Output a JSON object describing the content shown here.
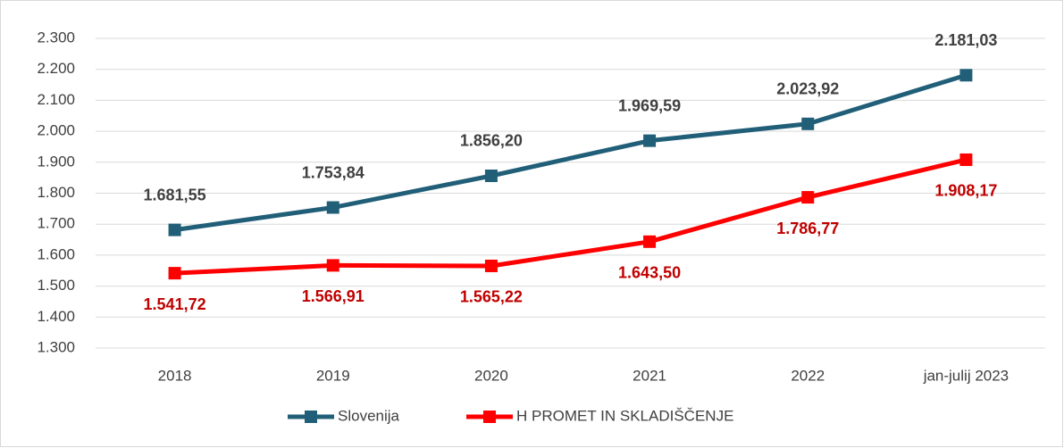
{
  "chart_data": {
    "type": "line",
    "categories": [
      "2018",
      "2019",
      "2020",
      "2021",
      "2022",
      "jan-julij 2023"
    ],
    "series": [
      {
        "name": "Slovenija",
        "color": "#215f79",
        "label_color": "#404040",
        "values": [
          1681.55,
          1753.84,
          1856.2,
          1969.59,
          2023.92,
          2181.03
        ],
        "value_labels": [
          "1.681,55",
          "1.753,84",
          "1.856,20",
          "1.969,59",
          "2.023,92",
          "2.181,03"
        ]
      },
      {
        "name": "H PROMET IN SKLADIŠČENJE",
        "color": "#ff0000",
        "label_color": "#c00000",
        "values": [
          1541.72,
          1566.91,
          1565.22,
          1643.5,
          1786.77,
          1908.17
        ],
        "value_labels": [
          "1.541,72",
          "1.566,91",
          "1.565,22",
          "1.643,50",
          "1.786,77",
          "1.908,17"
        ]
      }
    ],
    "ylim": [
      1300,
      2300
    ],
    "yticks": [
      {
        "value": 1300,
        "label": "1.300"
      },
      {
        "value": 1400,
        "label": "1.400"
      },
      {
        "value": 1500,
        "label": "1.500"
      },
      {
        "value": 1600,
        "label": "1.600"
      },
      {
        "value": 1700,
        "label": "1.700"
      },
      {
        "value": 1800,
        "label": "1.800"
      },
      {
        "value": 1900,
        "label": "1.900"
      },
      {
        "value": 2000,
        "label": "2.000"
      },
      {
        "value": 2100,
        "label": "2.100"
      },
      {
        "value": 2200,
        "label": "2.200"
      },
      {
        "value": 2300,
        "label": "2.300"
      }
    ],
    "grid": true,
    "legend": "bottom"
  }
}
